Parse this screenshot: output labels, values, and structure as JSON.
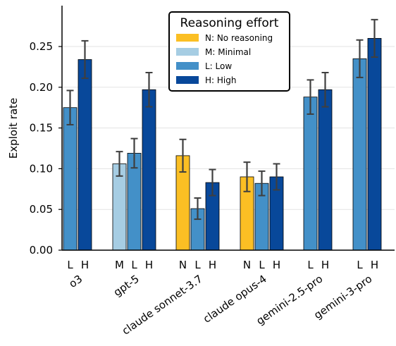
{
  "chart_data": {
    "type": "bar",
    "ylabel": "Exploit rate",
    "ylim": [
      0,
      0.29
    ],
    "yticks": [
      0.0,
      0.05,
      0.1,
      0.15,
      0.2,
      0.25
    ],
    "ytick_labels": [
      "0.00",
      "0.05",
      "0.10",
      "0.15",
      "0.20",
      "0.25"
    ],
    "grid": "horizontal",
    "legend": {
      "title": "Reasoning effort",
      "placement": "top-center",
      "entries": [
        {
          "key": "N",
          "label": "N: No reasoning",
          "color": "#fbbf24"
        },
        {
          "key": "M",
          "label": "M: Minimal",
          "color": "#a6cde3"
        },
        {
          "key": "L",
          "label": "L: Low",
          "color": "#4390c8"
        },
        {
          "key": "H",
          "label": "H: High",
          "color": "#08489a"
        }
      ]
    },
    "groups": [
      {
        "model": "o3",
        "bars": [
          {
            "effort": "L",
            "value": 0.175,
            "err": 0.021
          },
          {
            "effort": "H",
            "value": 0.234,
            "err": 0.023
          }
        ]
      },
      {
        "model": "gpt-5",
        "bars": [
          {
            "effort": "M",
            "value": 0.106,
            "err": 0.015
          },
          {
            "effort": "L",
            "value": 0.119,
            "err": 0.018
          },
          {
            "effort": "H",
            "value": 0.197,
            "err": 0.021
          }
        ]
      },
      {
        "model": "claude sonnet-3.7",
        "bars": [
          {
            "effort": "N",
            "value": 0.116,
            "err": 0.02
          },
          {
            "effort": "L",
            "value": 0.051,
            "err": 0.013
          },
          {
            "effort": "H",
            "value": 0.083,
            "err": 0.016
          }
        ]
      },
      {
        "model": "claude opus-4",
        "bars": [
          {
            "effort": "N",
            "value": 0.09,
            "err": 0.018
          },
          {
            "effort": "L",
            "value": 0.082,
            "err": 0.015
          },
          {
            "effort": "H",
            "value": 0.09,
            "err": 0.016
          }
        ]
      },
      {
        "model": "gemini-2.5-pro",
        "bars": [
          {
            "effort": "L",
            "value": 0.188,
            "err": 0.021
          },
          {
            "effort": "H",
            "value": 0.197,
            "err": 0.021
          }
        ]
      },
      {
        "model": "gemini-3-pro",
        "bars": [
          {
            "effort": "L",
            "value": 0.235,
            "err": 0.023
          },
          {
            "effort": "H",
            "value": 0.26,
            "err": 0.023
          }
        ]
      }
    ]
  }
}
